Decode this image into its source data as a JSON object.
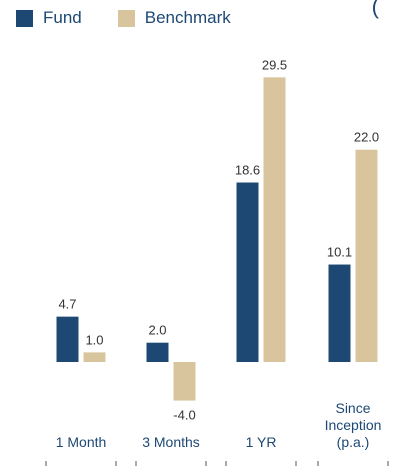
{
  "legend": {
    "fund_label": "Fund",
    "benchmark_label": "Benchmark"
  },
  "corner_glyph": "(",
  "colors": {
    "fund": "#1d4873",
    "benchmark": "#d8c59e",
    "text": "#1d4873",
    "value_text": "#333333"
  },
  "chart_data": {
    "type": "bar",
    "title": "",
    "xlabel": "",
    "ylabel": "",
    "categories": [
      [
        "1 Month"
      ],
      [
        "3 Months"
      ],
      [
        "1 YR"
      ],
      [
        "Since",
        "Inception",
        "(p.a.)"
      ]
    ],
    "series": [
      {
        "name": "Fund",
        "values": [
          4.7,
          2.0,
          18.6,
          10.1
        ],
        "labels": [
          "4.7",
          "2.0",
          "18.6",
          "10.1"
        ]
      },
      {
        "name": "Benchmark",
        "values": [
          1.0,
          -4.0,
          29.5,
          22.0
        ],
        "labels": [
          "1.0",
          "-4.0",
          "29.5",
          "22.0"
        ]
      }
    ],
    "ylim": [
      -4.0,
      29.5
    ],
    "grid": false,
    "legend_position": "top-left"
  }
}
